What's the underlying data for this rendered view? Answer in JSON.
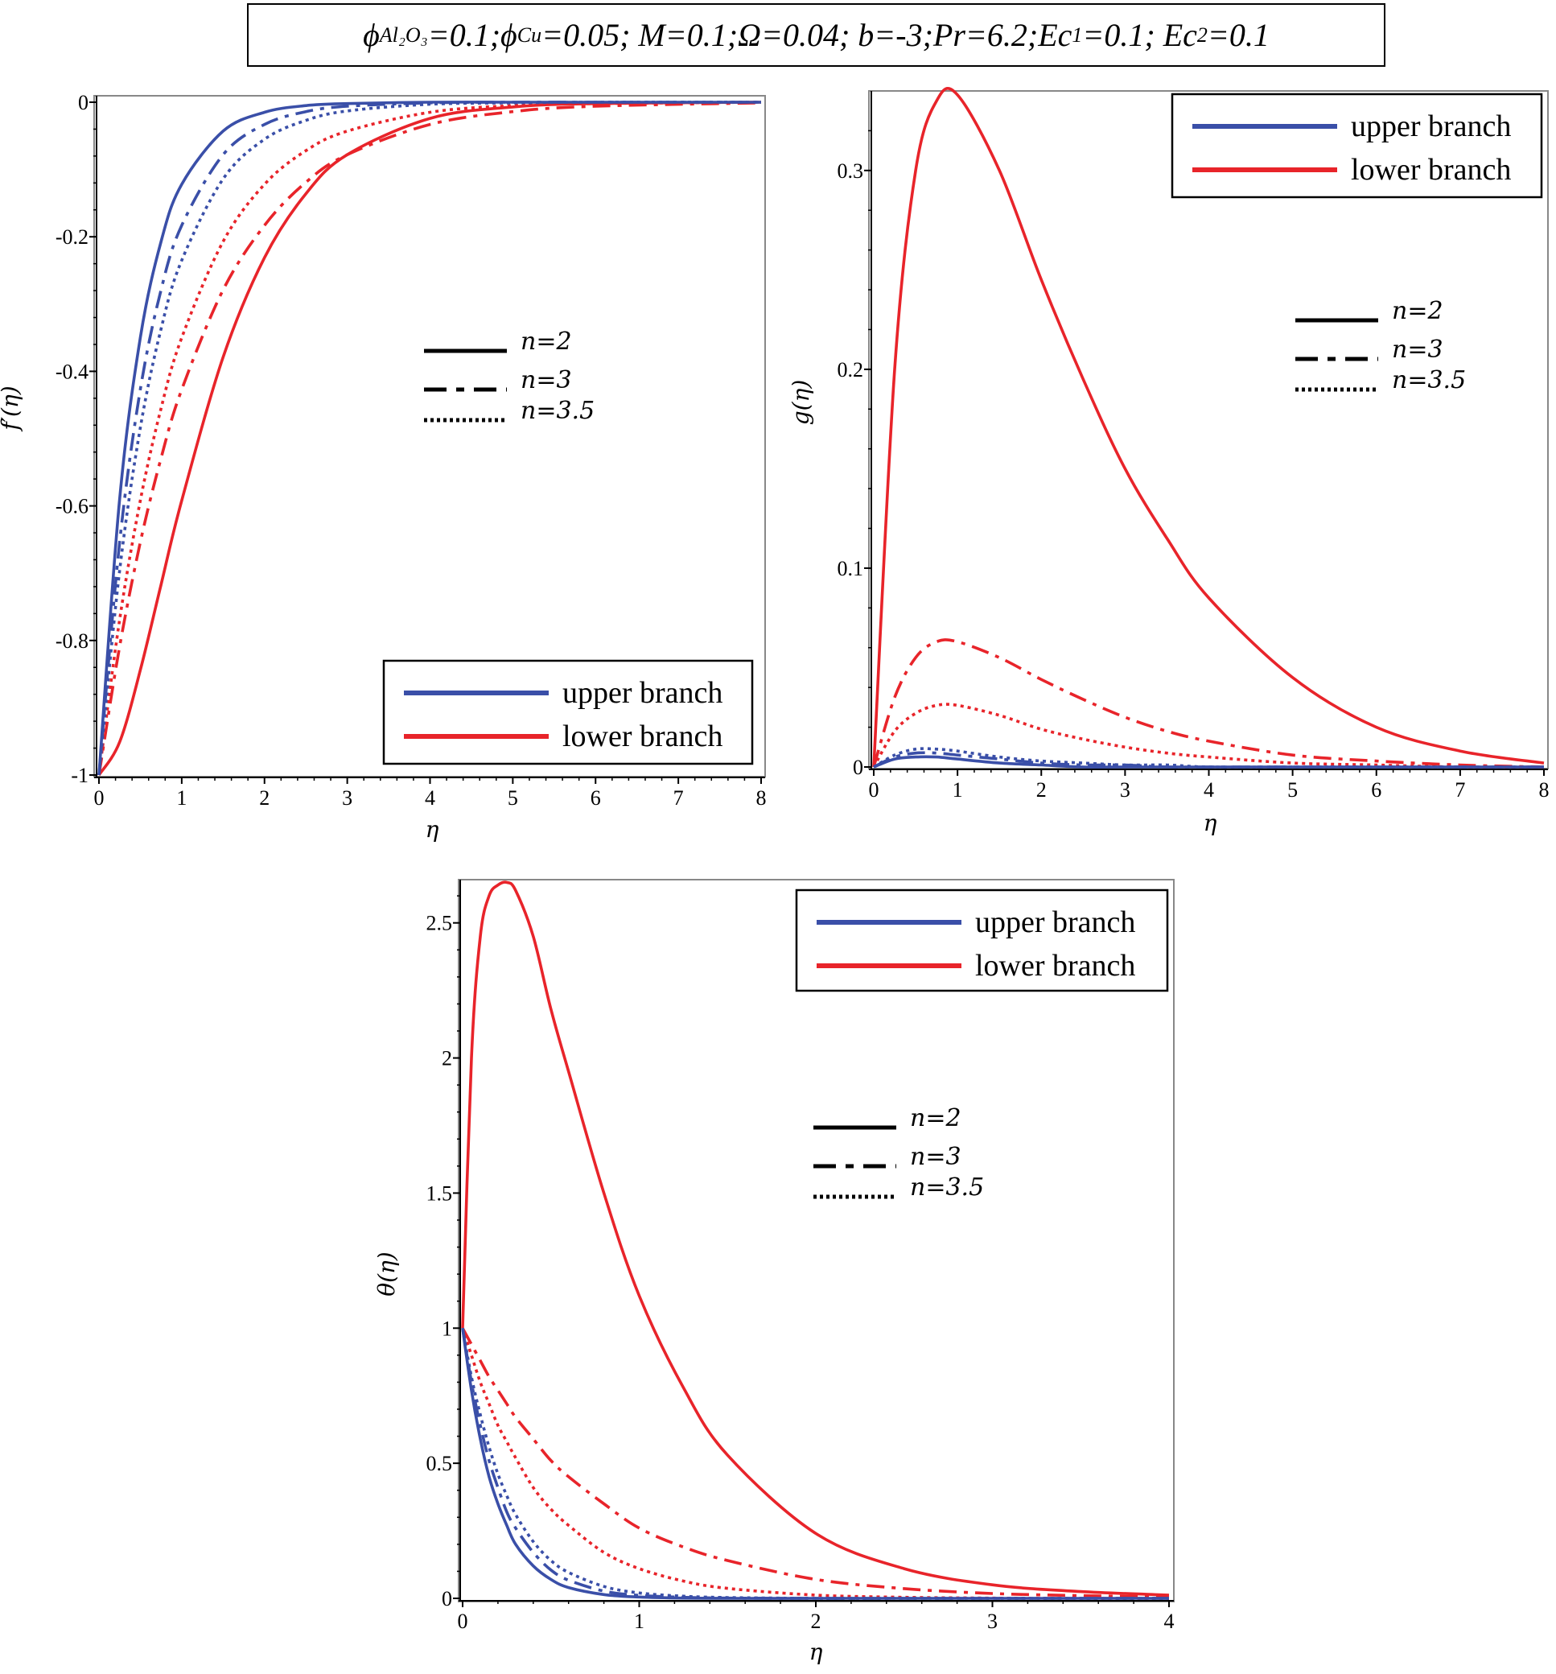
{
  "title": {
    "parts": [
      {
        "text": "ϕ",
        "sub": "Al₂O₃"
      },
      {
        "text": "=0.1;ϕ",
        "sub": "Cu"
      },
      {
        "text": "=0.05; M=0.1;Ω=0.04;  b=-3;Pr=6.2;Ec",
        "sub": "1"
      },
      {
        "text": "=0.1; Ec",
        "sub": "2"
      },
      {
        "text": "=0.1",
        "sub": ""
      }
    ]
  },
  "colors": {
    "upper": "#3a4fa8",
    "lower": "#e8242a"
  },
  "chart_data": [
    {
      "type": "line",
      "title": "",
      "xlabel": "η",
      "ylabel": "f′(η)",
      "xlim": [
        0,
        8
      ],
      "ylim": [
        -1,
        0
      ],
      "xticks": [
        "0",
        "1",
        "2",
        "3",
        "4",
        "5",
        "6",
        "7",
        "8"
      ],
      "yticks": [
        {
          "v": 0,
          "label": "0"
        },
        {
          "v": -0.2,
          "label": "-0.2"
        },
        {
          "v": -0.4,
          "label": "-0.4"
        },
        {
          "v": -0.6,
          "label": "-0.6"
        },
        {
          "v": -0.8,
          "label": "-0.8"
        },
        {
          "v": -1,
          "label": "-1"
        }
      ],
      "legend_branch": {
        "placement": "bottom-right",
        "items": [
          "upper branch",
          "lower branch"
        ]
      },
      "legend_n": {
        "placement": "center",
        "items": [
          "n=2",
          "n=3",
          "n=3.5"
        ]
      },
      "x": [
        0,
        0.25,
        0.5,
        0.75,
        1,
        1.5,
        2,
        2.5,
        3,
        4,
        5,
        6,
        8
      ],
      "series": [
        {
          "name": "upper branch, n=2",
          "branch": "upper",
          "style": "solid",
          "values": [
            -1,
            -0.59,
            -0.35,
            -0.207,
            -0.122,
            -0.043,
            -0.015,
            -0.005,
            -0.002,
            0,
            0,
            0,
            0
          ]
        },
        {
          "name": "upper branch, n=3",
          "branch": "upper",
          "style": "dashdot",
          "values": [
            -1,
            -0.654,
            -0.427,
            -0.279,
            -0.183,
            -0.078,
            -0.033,
            -0.014,
            -0.006,
            -0.001,
            0,
            0,
            0
          ]
        },
        {
          "name": "upper branch, n=3.5",
          "branch": "upper",
          "style": "dot",
          "values": [
            -1,
            -0.696,
            -0.484,
            -0.337,
            -0.235,
            -0.114,
            -0.055,
            -0.027,
            -0.013,
            -0.003,
            -0.001,
            0,
            0
          ]
        },
        {
          "name": "lower branch, n=2",
          "branch": "lower",
          "style": "solid",
          "values": [
            -1,
            -0.951,
            -0.844,
            -0.717,
            -0.592,
            -0.379,
            -0.231,
            -0.136,
            -0.078,
            -0.024,
            -0.007,
            -0.002,
            0
          ]
        },
        {
          "name": "lower branch, n=3",
          "branch": "lower",
          "style": "dashdot",
          "values": [
            -1,
            -0.809,
            -0.654,
            -0.529,
            -0.427,
            -0.279,
            -0.183,
            -0.119,
            -0.078,
            -0.033,
            -0.014,
            -0.006,
            -0.001
          ]
        },
        {
          "name": "lower branch, n=3.5",
          "branch": "lower",
          "style": "dot",
          "values": [
            -1,
            -0.769,
            -0.592,
            -0.455,
            -0.35,
            -0.207,
            -0.122,
            -0.072,
            -0.043,
            -0.015,
            -0.005,
            -0.002,
            0
          ]
        }
      ]
    },
    {
      "type": "line",
      "title": "",
      "xlabel": "η",
      "ylabel": "g(η)",
      "xlim": [
        0,
        8
      ],
      "ylim": [
        0,
        0.34
      ],
      "xticks": [
        "0",
        "1",
        "2",
        "3",
        "4",
        "5",
        "6",
        "7",
        "8"
      ],
      "yticks": [
        {
          "v": 0,
          "label": "0"
        },
        {
          "v": 0.1,
          "label": "0.1"
        },
        {
          "v": 0.2,
          "label": "0.2"
        },
        {
          "v": 0.3,
          "label": "0.3"
        }
      ],
      "legend_branch": {
        "placement": "top-right",
        "items": [
          "upper branch",
          "lower branch"
        ]
      },
      "legend_n": {
        "placement": "upper-right",
        "items": [
          "n=2",
          "n=3",
          "n=3.5"
        ]
      },
      "x": [
        0,
        0.25,
        0.5,
        0.75,
        1,
        1.5,
        2,
        2.5,
        3,
        3.5,
        4,
        5,
        6,
        7,
        8
      ],
      "series": [
        {
          "name": "upper branch, n=2",
          "branch": "upper",
          "style": "solid",
          "values": [
            0,
            0.004,
            0.005,
            0.005,
            0.004,
            0.002,
            0.001,
            0,
            0,
            0,
            0,
            0,
            0,
            0,
            0
          ]
        },
        {
          "name": "upper branch, n=3",
          "branch": "upper",
          "style": "dashdot",
          "values": [
            0,
            0.005,
            0.007,
            0.007,
            0.006,
            0.004,
            0.002,
            0.001,
            0.001,
            0,
            0,
            0,
            0,
            0,
            0
          ]
        },
        {
          "name": "upper branch, n=3.5",
          "branch": "upper",
          "style": "dot",
          "values": [
            0,
            0.006,
            0.009,
            0.009,
            0.008,
            0.005,
            0.003,
            0.002,
            0.001,
            0.001,
            0,
            0,
            0,
            0,
            0
          ]
        },
        {
          "name": "lower branch, n=2",
          "branch": "lower",
          "style": "solid",
          "values": [
            0,
            0.2,
            0.3,
            0.335,
            0.338,
            0.3,
            0.245,
            0.195,
            0.15,
            0.115,
            0.085,
            0.045,
            0.02,
            0.008,
            0.002
          ]
        },
        {
          "name": "lower branch, n=3",
          "branch": "lower",
          "style": "dashdot",
          "values": [
            0,
            0.035,
            0.055,
            0.063,
            0.063,
            0.055,
            0.044,
            0.034,
            0.025,
            0.018,
            0.013,
            0.006,
            0.003,
            0.001,
            0
          ]
        },
        {
          "name": "lower branch, n=3.5",
          "branch": "lower",
          "style": "dot",
          "values": [
            0,
            0.018,
            0.027,
            0.031,
            0.031,
            0.026,
            0.019,
            0.014,
            0.01,
            0.007,
            0.005,
            0.002,
            0.001,
            0,
            0
          ]
        }
      ]
    },
    {
      "type": "line",
      "title": "",
      "xlabel": "η",
      "ylabel": "θ(η)",
      "xlim": [
        0,
        4
      ],
      "ylim": [
        0,
        2.66
      ],
      "xticks": [
        "0",
        "1",
        "2",
        "3",
        "4"
      ],
      "yticks": [
        {
          "v": 0,
          "label": "0"
        },
        {
          "v": 0.5,
          "label": "0.5"
        },
        {
          "v": 1,
          "label": "1"
        },
        {
          "v": 1.5,
          "label": "1.5"
        },
        {
          "v": 2,
          "label": "2"
        },
        {
          "v": 2.5,
          "label": "2.5"
        }
      ],
      "legend_branch": {
        "placement": "top-right",
        "items": [
          "upper branch",
          "lower branch"
        ]
      },
      "legend_n": {
        "placement": "center",
        "items": [
          "n=2",
          "n=3",
          "n=3.5"
        ]
      },
      "x": [
        0,
        0.05,
        0.1,
        0.15,
        0.2,
        0.25,
        0.3,
        0.4,
        0.5,
        0.6,
        0.8,
        1,
        1.25,
        1.5,
        2,
        2.5,
        3,
        3.5,
        4
      ],
      "series": [
        {
          "name": "upper branch, n=2",
          "branch": "upper",
          "style": "solid",
          "values": [
            1,
            0.77,
            0.59,
            0.45,
            0.35,
            0.27,
            0.2,
            0.12,
            0.07,
            0.04,
            0.014,
            0.005,
            0.001,
            0,
            0,
            0,
            0,
            0,
            0
          ]
        },
        {
          "name": "upper branch, n=3",
          "branch": "upper",
          "style": "dashdot",
          "values": [
            1,
            0.8,
            0.64,
            0.51,
            0.41,
            0.32,
            0.26,
            0.17,
            0.105,
            0.067,
            0.027,
            0.011,
            0.004,
            0.001,
            0,
            0,
            0,
            0,
            0
          ]
        },
        {
          "name": "upper branch, n=3.5",
          "branch": "upper",
          "style": "dot",
          "values": [
            1,
            0.82,
            0.68,
            0.56,
            0.46,
            0.38,
            0.31,
            0.21,
            0.14,
            0.096,
            0.044,
            0.02,
            0.008,
            0.003,
            0,
            0,
            0,
            0,
            0
          ]
        },
        {
          "name": "lower branch, n=2",
          "branch": "lower",
          "style": "solid",
          "values": [
            1,
            2.0,
            2.45,
            2.6,
            2.64,
            2.65,
            2.62,
            2.45,
            2.18,
            1.95,
            1.5,
            1.12,
            0.78,
            0.53,
            0.24,
            0.11,
            0.05,
            0.025,
            0.012
          ]
        },
        {
          "name": "lower branch, n=3",
          "branch": "lower",
          "style": "dashdot",
          "values": [
            1,
            0.94,
            0.88,
            0.82,
            0.77,
            0.72,
            0.67,
            0.59,
            0.51,
            0.45,
            0.35,
            0.26,
            0.19,
            0.14,
            0.07,
            0.036,
            0.018,
            0.01,
            0.005
          ]
        },
        {
          "name": "lower branch, n=3.5",
          "branch": "lower",
          "style": "dot",
          "values": [
            1,
            0.9,
            0.8,
            0.72,
            0.64,
            0.58,
            0.52,
            0.41,
            0.33,
            0.27,
            0.17,
            0.11,
            0.064,
            0.037,
            0.012,
            0.004,
            0.001,
            0,
            0
          ]
        }
      ]
    }
  ]
}
